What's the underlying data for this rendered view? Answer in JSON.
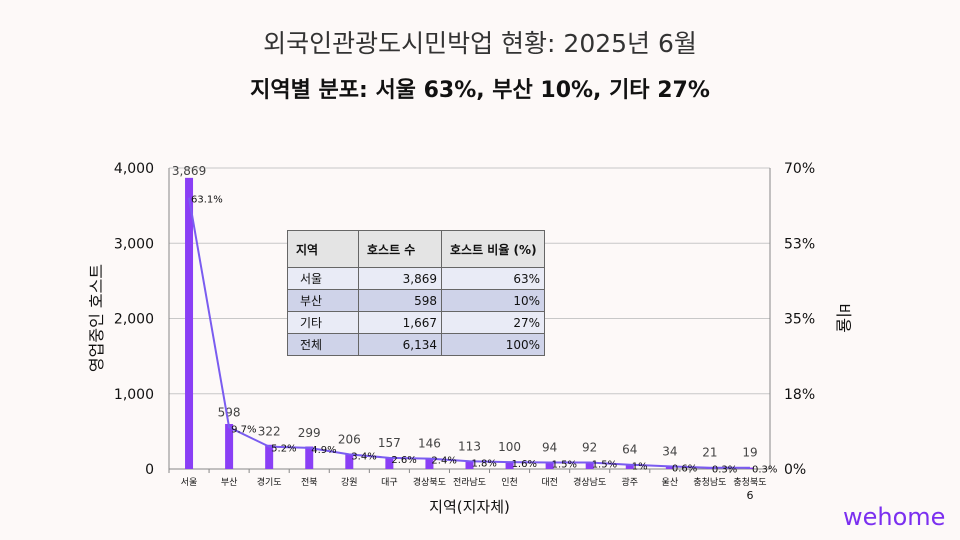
{
  "header": {
    "title": "외국인관광도시민박업 현황: 2025년 6월",
    "subtitle": "지역별 분포: 서울 63%, 부산 10%, 기타 27%"
  },
  "chart_data": {
    "type": "bar",
    "categories": [
      "서울",
      "부산",
      "경기도",
      "전북",
      "강원",
      "대구",
      "경상북도",
      "전라남도",
      "인천",
      "대전",
      "경상남도",
      "광주",
      "울산",
      "충청남도",
      "충청북도"
    ],
    "series": [
      {
        "name": "영업중인 호스트",
        "axis": "left",
        "type": "bar",
        "values": [
          3869,
          598,
          322,
          299,
          206,
          157,
          146,
          113,
          100,
          94,
          92,
          64,
          34,
          21,
          19
        ]
      },
      {
        "name": "비율",
        "axis": "right",
        "type": "line",
        "values": [
          63.1,
          9.7,
          5.2,
          4.9,
          3.4,
          2.6,
          2.4,
          1.8,
          1.6,
          1.5,
          1.5,
          1,
          0.6,
          0.3,
          0.3
        ]
      }
    ],
    "bar_labels": [
      "3,869",
      "598",
      "322",
      "299",
      "206",
      "157",
      "146",
      "113",
      "100",
      "94",
      "92",
      "64",
      "34",
      "21",
      "19"
    ],
    "pct_labels": [
      "63.1%",
      "9.7%",
      "5.2%",
      "4.9%",
      "3.4%",
      "2.6%",
      "2.4%",
      "1.8%",
      "1.6%",
      "1.5%",
      "1.5%",
      "1%",
      "0.6%",
      "0.3%",
      "0.3%"
    ],
    "extra_label": "6",
    "xlabel": "지역(지자체)",
    "ylabel": "영업중인 호스트",
    "y2label": "비율",
    "ylim": [
      0,
      4000
    ],
    "y2lim": [
      0,
      70
    ],
    "yticks": [
      "0",
      "1,000",
      "2,000",
      "3,000",
      "4,000"
    ],
    "y2ticks": [
      "0%",
      "18%",
      "35%",
      "53%",
      "70%"
    ],
    "grid": true,
    "colors": {
      "bar": "#8a3ff5",
      "line": "#7a5cf0"
    }
  },
  "table": {
    "headers": [
      "지역",
      "호스트 수",
      "호스트 비율 (%)"
    ],
    "rows": [
      [
        "서울",
        "3,869",
        "63%"
      ],
      [
        "부산",
        "598",
        "10%"
      ],
      [
        "기타",
        "1,667",
        "27%"
      ],
      [
        "전체",
        "6,134",
        "100%"
      ]
    ]
  },
  "logo": "wehome"
}
